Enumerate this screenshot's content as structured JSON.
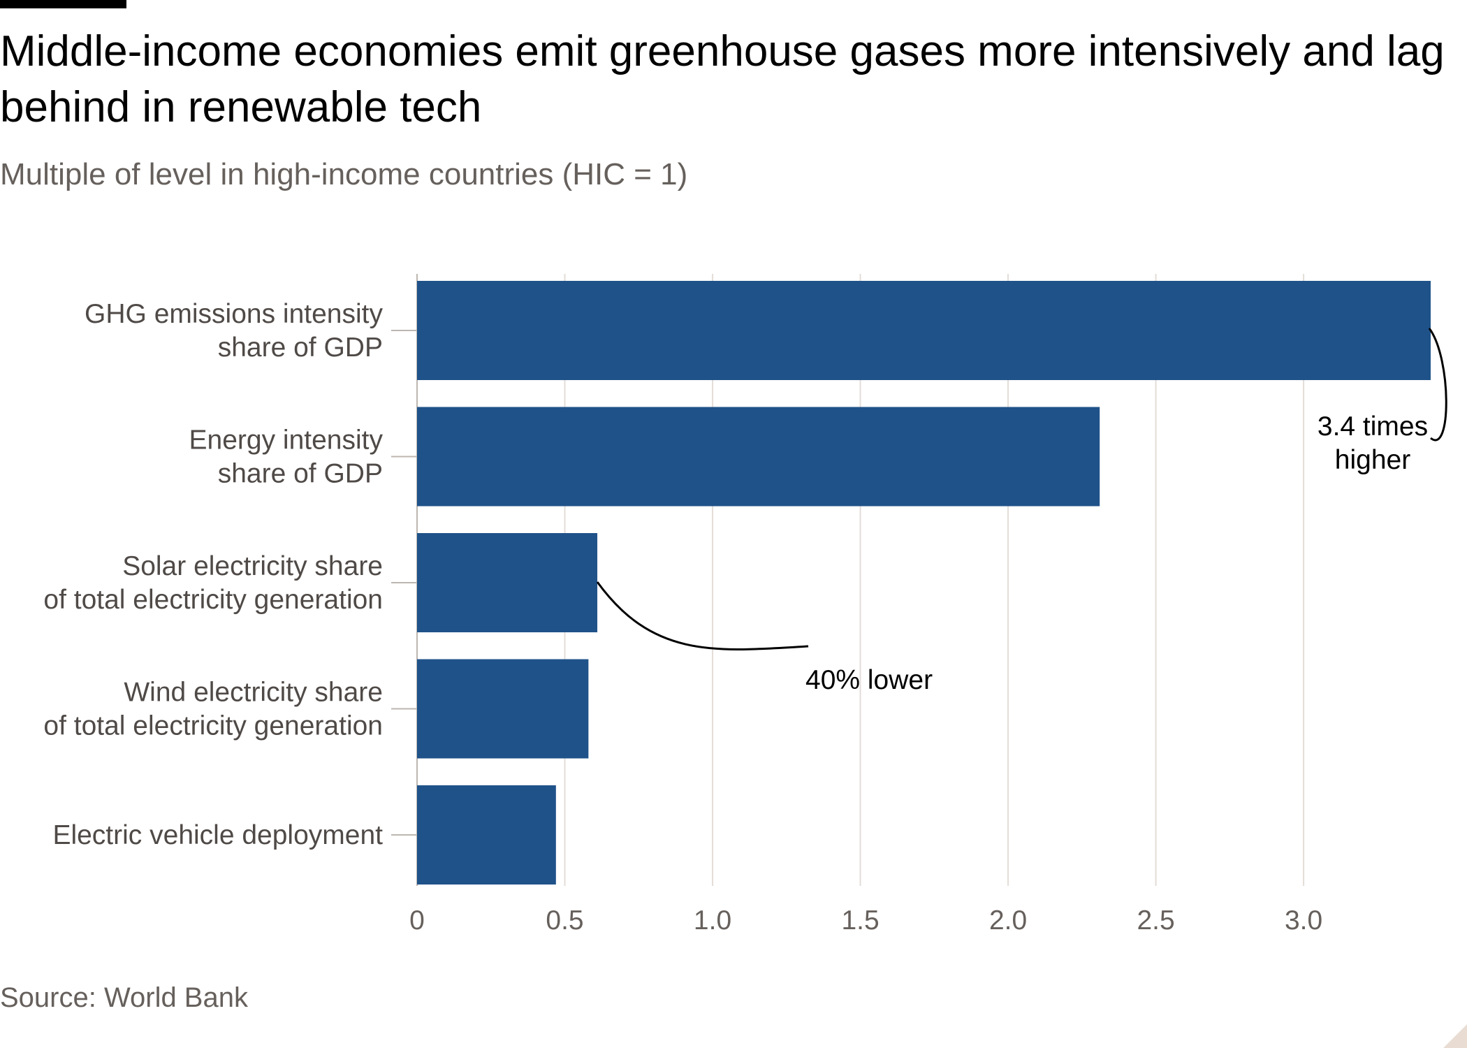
{
  "header": {
    "title": "Middle-income economies emit greenhouse gases more intensively and lag behind in renewable tech",
    "subtitle": "Multiple of level in high-income countries (HIC = 1)"
  },
  "footer": {
    "source": "Source: World Bank"
  },
  "colors": {
    "bar": "#1f5289",
    "grid": "#e3ddd8",
    "axis": "#bdb6b0",
    "annotation": "#000000"
  },
  "chart_data": {
    "type": "bar",
    "orientation": "horizontal",
    "categories": [
      [
        "GHG emissions intensity",
        "share of GDP"
      ],
      [
        "Energy intensity",
        "share of GDP"
      ],
      [
        "Solar electricity share",
        "of total electricity generation"
      ],
      [
        "Wind electricity share",
        "of total electricity generation"
      ],
      [
        "Electric vehicle deployment"
      ]
    ],
    "values": [
      3.43,
      2.31,
      0.61,
      0.58,
      0.47
    ],
    "xlim": [
      0,
      3.43
    ],
    "xticks": [
      0,
      0.5,
      1.0,
      1.5,
      2.0,
      2.5,
      3.0
    ],
    "xtick_labels": [
      "0",
      "0.5",
      "1.0",
      "1.5",
      "2.0",
      "2.5",
      "3.0"
    ],
    "grid": "vertical",
    "legend": "none",
    "annotations": [
      {
        "category_index": 0,
        "lines": [
          "3.4 times",
          "higher"
        ]
      },
      {
        "category_index": 2,
        "lines": [
          "40% lower"
        ]
      }
    ]
  }
}
